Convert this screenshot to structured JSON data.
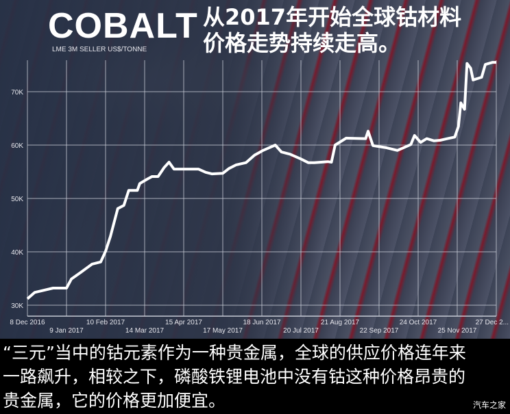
{
  "header": {
    "title": "COBALT",
    "subtitle": "LME 3M SELLER US$/TONNE",
    "cn_title_line1": "从2017年开始全球钴材料",
    "cn_title_line2": "价格走势持续走高。"
  },
  "caption": {
    "lines": [
      "“三元”当中的钴元素作为一种贵金属，全球的供应价格连年来",
      "一路飙升，相较之下，磷酸铁锂电池中没有钴这种价格昂贵的",
      "贵金属，它的价格更加便宜。"
    ]
  },
  "watermark": "汽车之家",
  "colors": {
    "line": "#ffffff",
    "grid": "#c8ccd6",
    "background": "#2a3042",
    "caption_bg": "#000000"
  },
  "chart_data": {
    "type": "line",
    "title": "COBALT",
    "subtitle": "LME 3M SELLER US$/TONNE",
    "ylim": [
      28000,
      76000
    ],
    "grid": true,
    "y_ticks": [
      {
        "value": 30000,
        "label": "30K"
      },
      {
        "value": 40000,
        "label": "40K"
      },
      {
        "value": 50000,
        "label": "50K"
      },
      {
        "value": 60000,
        "label": "60K"
      },
      {
        "value": 70000,
        "label": "70K"
      }
    ],
    "x_ticks": [
      {
        "date": "2016-12-08",
        "label": "8 Dec 2016"
      },
      {
        "date": "2017-01-09",
        "label": "9 Jan 2017"
      },
      {
        "date": "2017-02-10",
        "label": "10 Feb 2017"
      },
      {
        "date": "2017-03-14",
        "label": "14 Mar 2017"
      },
      {
        "date": "2017-04-15",
        "label": "15 Apr 2017"
      },
      {
        "date": "2017-05-17",
        "label": "17 May 2017"
      },
      {
        "date": "2017-06-18",
        "label": "18 Jun 2017"
      },
      {
        "date": "2017-07-20",
        "label": "20 Jul 2017"
      },
      {
        "date": "2017-08-21",
        "label": "21 Aug 2017"
      },
      {
        "date": "2017-09-22",
        "label": "22 Sep 2017"
      },
      {
        "date": "2017-10-24",
        "label": "24 Oct 2017"
      },
      {
        "date": "2017-11-25",
        "label": "25 Nov 2017"
      },
      {
        "date": "2017-12-27",
        "label": "27 Dec 2..."
      }
    ],
    "series": [
      {
        "points": [
          [
            "2016-12-08",
            31200
          ],
          [
            "2016-12-14",
            32400
          ],
          [
            "2016-12-29",
            33200
          ],
          [
            "2017-01-09",
            33200
          ],
          [
            "2017-01-13",
            34900
          ],
          [
            "2017-01-21",
            36200
          ],
          [
            "2017-01-30",
            37700
          ],
          [
            "2017-02-06",
            38100
          ],
          [
            "2017-02-10",
            40100
          ],
          [
            "2017-02-14",
            42900
          ],
          [
            "2017-02-20",
            48100
          ],
          [
            "2017-02-25",
            48700
          ],
          [
            "2017-03-01",
            51500
          ],
          [
            "2017-03-08",
            51500
          ],
          [
            "2017-03-10",
            52800
          ],
          [
            "2017-03-16",
            53600
          ],
          [
            "2017-03-20",
            54100
          ],
          [
            "2017-03-25",
            54100
          ],
          [
            "2017-03-30",
            55800
          ],
          [
            "2017-04-03",
            56800
          ],
          [
            "2017-04-07",
            55500
          ],
          [
            "2017-04-27",
            55500
          ],
          [
            "2017-05-03",
            54900
          ],
          [
            "2017-05-08",
            54600
          ],
          [
            "2017-05-17",
            54700
          ],
          [
            "2017-05-22",
            55600
          ],
          [
            "2017-05-28",
            56300
          ],
          [
            "2017-06-05",
            56700
          ],
          [
            "2017-06-12",
            58100
          ],
          [
            "2017-06-19",
            59000
          ],
          [
            "2017-06-29",
            60000
          ],
          [
            "2017-07-04",
            58700
          ],
          [
            "2017-07-11",
            58300
          ],
          [
            "2017-07-20",
            57400
          ],
          [
            "2017-07-26",
            56700
          ],
          [
            "2017-07-31",
            56700
          ],
          [
            "2017-08-11",
            56900
          ],
          [
            "2017-08-14",
            56800
          ],
          [
            "2017-08-17",
            60000
          ],
          [
            "2017-08-26",
            61300
          ],
          [
            "2017-09-11",
            61200
          ],
          [
            "2017-09-13",
            62600
          ],
          [
            "2017-09-17",
            59900
          ],
          [
            "2017-09-28",
            59500
          ],
          [
            "2017-10-07",
            59000
          ],
          [
            "2017-10-12",
            59500
          ],
          [
            "2017-10-18",
            60100
          ],
          [
            "2017-10-21",
            61800
          ],
          [
            "2017-10-26",
            60500
          ],
          [
            "2017-10-31",
            61200
          ],
          [
            "2017-11-06",
            60800
          ],
          [
            "2017-11-11",
            60900
          ],
          [
            "2017-11-17",
            61200
          ],
          [
            "2017-11-23",
            61500
          ],
          [
            "2017-11-26",
            63500
          ],
          [
            "2017-11-28",
            67900
          ],
          [
            "2017-12-01",
            66700
          ],
          [
            "2017-12-03",
            75300
          ],
          [
            "2017-12-06",
            74400
          ],
          [
            "2017-12-08",
            72200
          ],
          [
            "2017-12-15",
            72700
          ],
          [
            "2017-12-18",
            75100
          ],
          [
            "2017-12-24",
            75500
          ],
          [
            "2017-12-27",
            75500
          ]
        ]
      }
    ]
  }
}
